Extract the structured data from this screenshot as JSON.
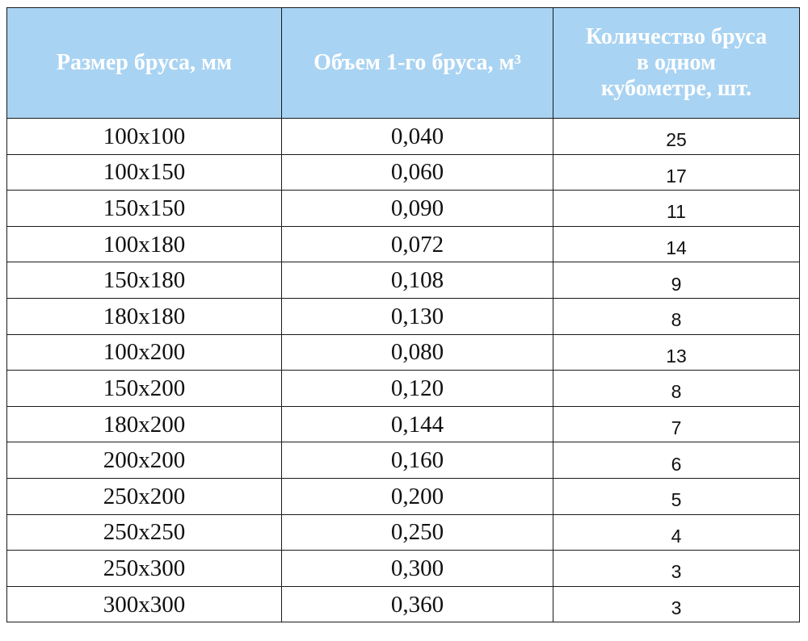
{
  "table": {
    "headers": [
      "Размер бруса, мм",
      "Объем 1-го бруса, м³",
      [
        "Количество бруса",
        "в одном",
        "кубометре, шт."
      ]
    ],
    "rows": [
      [
        "100х100",
        "0,040",
        "25"
      ],
      [
        "100х150",
        "0,060",
        "17"
      ],
      [
        "150х150",
        "0,090",
        "11"
      ],
      [
        "100х180",
        "0,072",
        "14"
      ],
      [
        "150х180",
        "0,108",
        "9"
      ],
      [
        "180х180",
        "0,130",
        "8"
      ],
      [
        "100х200",
        "0,080",
        "13"
      ],
      [
        "150х200",
        "0,120",
        "8"
      ],
      [
        "180х200",
        "0,144",
        "7"
      ],
      [
        "200х200",
        "0,160",
        "6"
      ],
      [
        "250х200",
        "0,200",
        "5"
      ],
      [
        "250х250",
        "0,250",
        "4"
      ],
      [
        "250х300",
        "0,300",
        "3"
      ],
      [
        "300х300",
        "0,360",
        "3"
      ]
    ]
  },
  "colors": {
    "header_background": "#a9d3f2",
    "header_text": "#ffffff",
    "border": "#1a1a1a",
    "cell_text": "#111111"
  }
}
